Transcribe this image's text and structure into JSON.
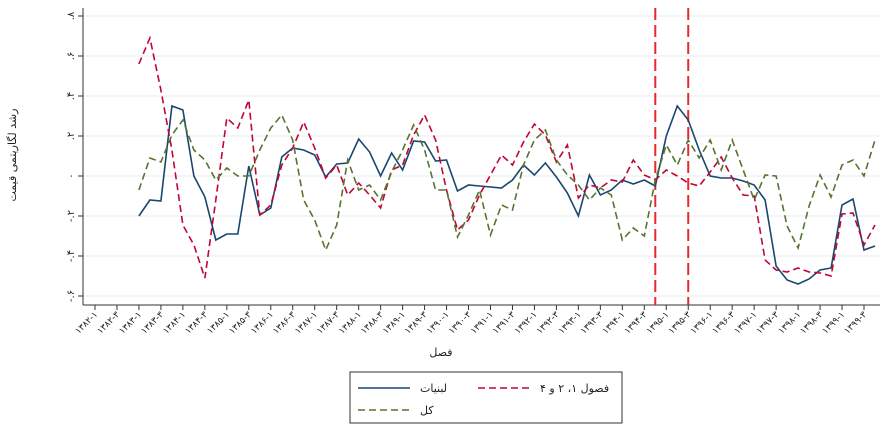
{
  "chart_data": {
    "type": "line",
    "y_label": "رشد لگاریتمی قیمت",
    "x_label": "فصل",
    "categories": [
      "۱۳۸۲-۱",
      null,
      "۱۳۸۲-۳",
      null,
      "۱۳۸۳-۱",
      null,
      "۱۳۸۳-۳",
      null,
      "۱۳۸۴-۱",
      null,
      "۱۳۸۴-۳",
      null,
      "۱۳۸۵-۱",
      null,
      "۱۳۸۵-۳",
      null,
      "۱۳۸۶-۱",
      null,
      "۱۳۸۶-۳",
      null,
      "۱۳۸۷-۱",
      null,
      "۱۳۸۷-۳",
      null,
      "۱۳۸۸-۱",
      null,
      "۱۳۸۸-۳",
      null,
      "۱۳۸۹-۱",
      null,
      "۱۳۸۹-۳",
      null,
      "۱۳۹۰-۱",
      null,
      "۱۳۹۰-۳",
      null,
      "۱۳۹۱-۱",
      null,
      "۱۳۹۱-۳",
      null,
      "۱۳۹۲-۱",
      null,
      "۱۳۹۲-۳",
      null,
      "۱۳۹۳-۱",
      null,
      "۱۳۹۳-۳",
      null,
      "۱۳۹۴-۱",
      null,
      "۱۳۹۴-۳",
      null,
      "۱۳۹۵-۱",
      null,
      "۱۳۹۵-۳",
      null,
      "۱۳۹۶-۱",
      null,
      "۱۳۹۶-۳",
      null,
      "۱۳۹۷-۱",
      null,
      "۱۳۹۷-۳",
      null,
      "۱۳۹۸-۱",
      null,
      "۱۳۹۸-۳",
      null,
      "۱۳۹۹-۱",
      null,
      "۱۳۹۹-۳",
      null
    ],
    "series": [
      {
        "name": "لبنیات",
        "color": "#1a476f",
        "dash": "",
        "values": [
          null,
          null,
          null,
          null,
          -0.2,
          -0.12,
          -0.125,
          0.35,
          0.33,
          0,
          -0.105,
          -0.32,
          -0.29,
          -0.29,
          0.05,
          -0.195,
          -0.16,
          0.095,
          0.14,
          0.13,
          0.105,
          -0.005,
          0.06,
          0.065,
          0.185,
          0.12,
          0,
          0.115,
          0.03,
          0.175,
          0.17,
          0.075,
          0.08,
          -0.075,
          -0.045,
          -0.05,
          -0.055,
          -0.06,
          -0.02,
          0.055,
          0.005,
          0.065,
          -0.005,
          -0.085,
          -0.2,
          0.005,
          -0.095,
          -0.07,
          -0.02,
          -0.04,
          -0.02,
          -0.05,
          0.2,
          0.35,
          0.28,
          0.13,
          0,
          -0.01,
          -0.01,
          -0.025,
          -0.045,
          -0.12,
          -0.45,
          -0.52,
          -0.54,
          -0.515,
          -0.47,
          -0.46,
          -0.145,
          -0.115,
          -0.37,
          -0.35
        ]
      },
      {
        "name": "فصول ۱، ۲ و ۴",
        "color": "#c10534",
        "dash": "7 4",
        "values": [
          null,
          null,
          null,
          null,
          0.56,
          0.69,
          0.43,
          0.13,
          -0.245,
          -0.345,
          -0.51,
          -0.12,
          0.29,
          0.24,
          0.38,
          -0.195,
          -0.145,
          0.055,
          0.14,
          0.27,
          0.14,
          -0.01,
          0.055,
          -0.095,
          -0.035,
          -0.095,
          -0.16,
          0.03,
          0.055,
          0.205,
          0.305,
          0.18,
          -0.07,
          -0.27,
          -0.22,
          -0.095,
          0.005,
          0.105,
          0.055,
          0.17,
          0.26,
          0.205,
          0.07,
          0.155,
          -0.11,
          -0.045,
          -0.06,
          -0.02,
          -0.03,
          0.08,
          0.005,
          -0.02,
          0.03,
          0,
          -0.035,
          -0.05,
          0.02,
          0.095,
          -0.01,
          -0.095,
          -0.1,
          -0.42,
          -0.47,
          -0.48,
          -0.46,
          -0.48,
          -0.485,
          -0.5,
          -0.19,
          -0.185,
          -0.345,
          -0.245
        ]
      },
      {
        "name": "کل",
        "color": "#55752f",
        "dash": "7 4",
        "values": [
          null,
          null,
          null,
          null,
          -0.07,
          0.09,
          0.07,
          0.205,
          0.28,
          0.13,
          0.08,
          -0.02,
          0.04,
          0,
          0,
          0.13,
          0.24,
          0.305,
          0.18,
          -0.12,
          -0.22,
          -0.37,
          -0.245,
          0.08,
          -0.07,
          -0.045,
          -0.12,
          0.02,
          0.13,
          0.255,
          0.13,
          -0.07,
          -0.07,
          -0.305,
          -0.195,
          -0.07,
          -0.295,
          -0.145,
          -0.17,
          0.055,
          0.18,
          0.23,
          0.08,
          0.005,
          -0.045,
          -0.12,
          -0.06,
          -0.095,
          -0.32,
          -0.26,
          -0.3,
          -0.02,
          0.155,
          0.055,
          0.18,
          0.09,
          0.18,
          0.03,
          0.18,
          0.03,
          -0.12,
          0.005,
          0,
          -0.25,
          -0.36,
          -0.15,
          0.005,
          -0.105,
          0.055,
          0.08,
          0,
          0.18
        ]
      }
    ],
    "vlines": [
      51,
      54
    ],
    "vline_color": "#e8282b",
    "ylim": [
      -0.645,
      0.84
    ],
    "yticks": [
      {
        "value": 0.8,
        "label": ".۸"
      },
      {
        "value": 0.6,
        "label": ".۶"
      },
      {
        "value": 0.4,
        "label": ".۴"
      },
      {
        "value": 0.2,
        "label": ".۲"
      },
      {
        "value": 0,
        "label": "۰"
      },
      {
        "value": -0.2,
        "label": "-.۲"
      },
      {
        "value": -0.4,
        "label": "-.۴"
      },
      {
        "value": -0.6,
        "label": "-.۶"
      }
    ],
    "grid": true
  }
}
